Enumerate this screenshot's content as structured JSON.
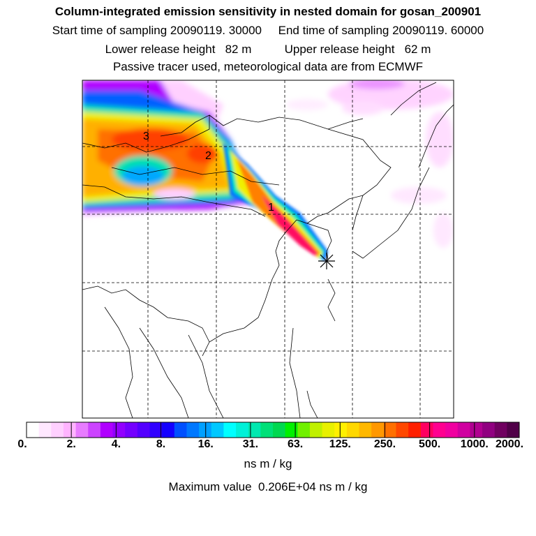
{
  "header": {
    "title": "Column-integrated emission sensitivity in nested domain for gosan_200901",
    "sampling": "Start time of sampling 20090119. 30000     End time of sampling 20090119. 60000",
    "release": "Lower release height   82 m          Upper release height   62 m",
    "tracer": "Passive tracer used, meteorological data are from ECMWF"
  },
  "map": {
    "trajectory_labels": [
      "1",
      "2",
      "3"
    ],
    "receptor_marker": "star-marker"
  },
  "colorbar": {
    "tick_labels": [
      "0.",
      "2.",
      "4.",
      "8.",
      "16.",
      "31.",
      "63.",
      "125.",
      "250.",
      "500.",
      "1000.",
      "2000."
    ],
    "colors": [
      "#ffffff",
      "#ffe8ff",
      "#ffd0ff",
      "#ffb4ff",
      "#e87cff",
      "#cc44ff",
      "#b000ff",
      "#9200ff",
      "#7400ff",
      "#5400ff",
      "#3000ff",
      "#1400ff",
      "#0050ff",
      "#0078ff",
      "#00a0ff",
      "#00c8ff",
      "#00ffff",
      "#00f0d8",
      "#00e8b0",
      "#00e078",
      "#00d850",
      "#00f000",
      "#70f000",
      "#c0f000",
      "#e8f000",
      "#fff000",
      "#ffd800",
      "#ffb800",
      "#ff9800",
      "#ff7000",
      "#ff4800",
      "#ff2000",
      "#ff0060",
      "#ff0090",
      "#f000a0",
      "#d000a0",
      "#b00090",
      "#900080",
      "#700060",
      "#500048"
    ]
  },
  "units": "ns m / kg",
  "max_value": "Maximum value  0.206E+04 ns m / kg"
}
